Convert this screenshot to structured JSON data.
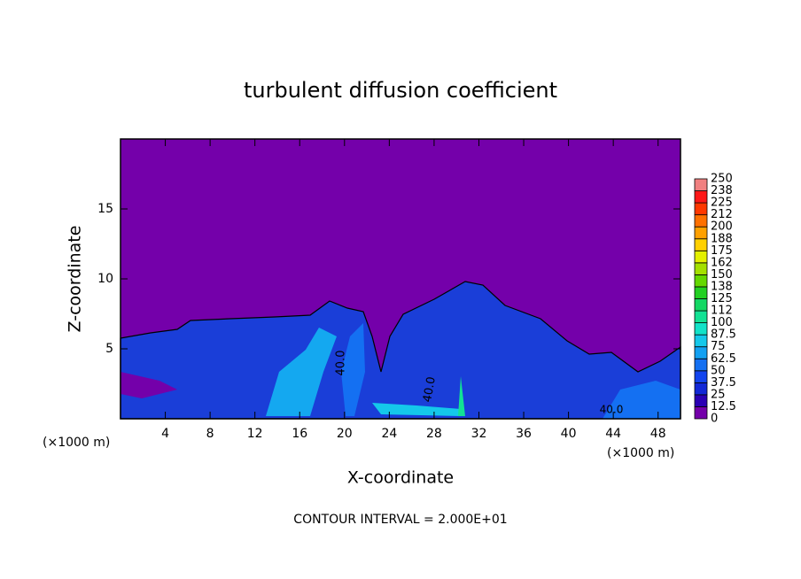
{
  "chart_data": {
    "type": "contour",
    "title": "turbulent diffusion coefficient",
    "xlabel": "X-coordinate",
    "ylabel": "Z-coordinate",
    "x_unit": "(×1000 m)",
    "annotation": "CONTOUR INTERVAL = 2.000E+01",
    "contour_labels": [
      "40.0",
      "40.0",
      "40.0"
    ],
    "xlim": [
      0,
      50
    ],
    "xticks": [
      4,
      8,
      12,
      16,
      20,
      24,
      28,
      32,
      36,
      40,
      44,
      48
    ],
    "ylim": [
      0,
      20
    ],
    "yticks": [
      5,
      10,
      15
    ],
    "colorbar": {
      "levels": [
        0,
        12.5,
        25,
        37.5,
        50,
        62.5,
        75,
        87.5,
        100,
        112,
        125,
        138,
        150,
        162,
        175,
        188,
        200,
        212,
        225,
        238,
        250
      ],
      "colors": [
        "#7400aa",
        "#2a00b4",
        "#1228d6",
        "#1244ee",
        "#1470f2",
        "#12a0f2",
        "#14c8ea",
        "#12e2c8",
        "#12e294",
        "#14d864",
        "#22d022",
        "#64d800",
        "#a4e000",
        "#e4f000",
        "#ffd000",
        "#ffa000",
        "#ff7000",
        "#ff3800",
        "#ff1818",
        "#f08080"
      ]
    }
  }
}
